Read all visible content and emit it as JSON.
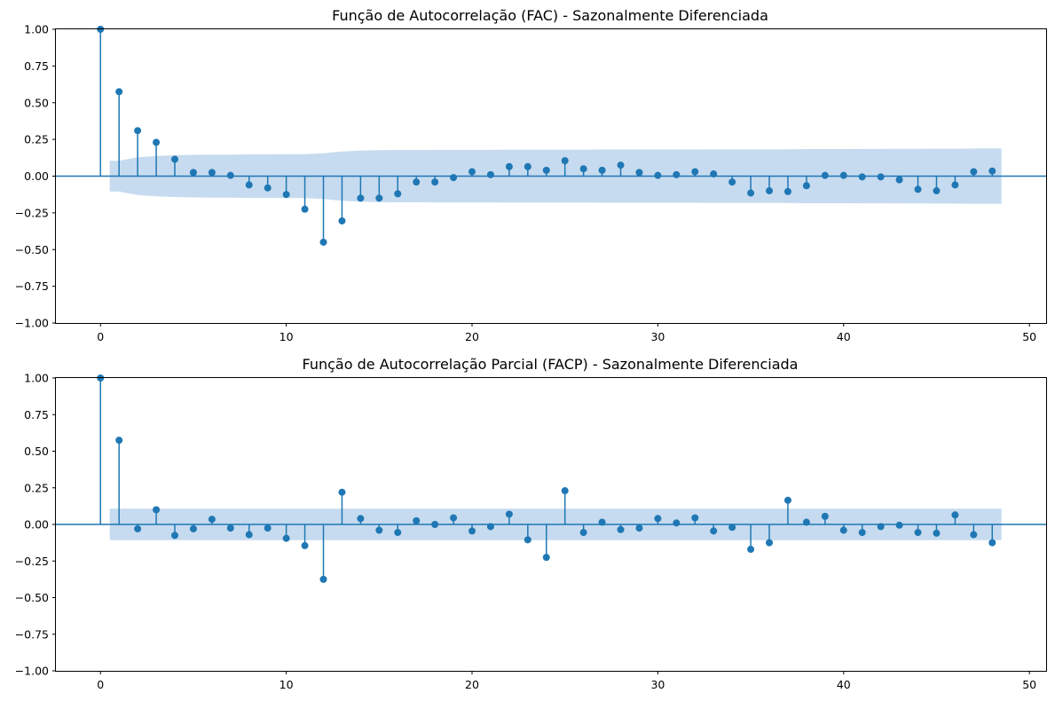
{
  "colors": {
    "series": "#1f77b4",
    "band": "#c6dbef"
  },
  "chart_data": [
    {
      "type": "stem",
      "title": "Função de Autocorrelação (FAC) - Sazonalmente Diferenciada",
      "xlabel": "",
      "ylabel": "",
      "xlim": [
        -2.4,
        50.9
      ],
      "ylim": [
        -1.0,
        1.0
      ],
      "xticks": [
        0,
        10,
        20,
        30,
        40,
        50
      ],
      "xtick_labels": [
        "0",
        "10",
        "20",
        "30",
        "40",
        "50"
      ],
      "yticks": [
        -1.0,
        -0.75,
        -0.5,
        -0.25,
        0.0,
        0.25,
        0.5,
        0.75,
        1.0
      ],
      "ytick_labels": [
        "−1.00",
        "−0.75",
        "−0.50",
        "−0.25",
        "0.00",
        "0.25",
        "0.50",
        "0.75",
        "1.00"
      ],
      "grid": false,
      "lags": [
        0,
        1,
        2,
        3,
        4,
        5,
        6,
        7,
        8,
        9,
        10,
        11,
        12,
        13,
        14,
        15,
        16,
        17,
        18,
        19,
        20,
        21,
        22,
        23,
        24,
        25,
        26,
        27,
        28,
        29,
        30,
        31,
        32,
        33,
        34,
        35,
        36,
        37,
        38,
        39,
        40,
        41,
        42,
        43,
        44,
        45,
        46,
        47,
        48
      ],
      "values": [
        1.0,
        0.575,
        0.31,
        0.23,
        0.115,
        0.025,
        0.025,
        0.005,
        -0.06,
        -0.08,
        -0.125,
        -0.225,
        -0.45,
        -0.305,
        -0.15,
        -0.15,
        -0.12,
        -0.04,
        -0.04,
        -0.01,
        0.03,
        0.01,
        0.065,
        0.065,
        0.04,
        0.105,
        0.05,
        0.04,
        0.075,
        0.025,
        0.005,
        0.01,
        0.03,
        0.015,
        -0.04,
        -0.115,
        -0.1,
        -0.105,
        -0.065,
        0.005,
        0.005,
        -0.005,
        -0.005,
        -0.025,
        -0.09,
        -0.1,
        -0.06,
        0.03,
        0.035
      ],
      "confidence_band": {
        "lags": [
          0.5,
          1,
          2,
          3,
          4,
          5,
          6,
          7,
          8,
          9,
          10,
          11,
          12,
          13,
          14,
          15,
          16,
          17,
          18,
          19,
          20,
          21,
          22,
          23,
          24,
          25,
          26,
          27,
          28,
          29,
          30,
          31,
          32,
          33,
          34,
          35,
          36,
          37,
          38,
          39,
          40,
          41,
          42,
          43,
          44,
          45,
          46,
          47,
          48,
          48.5
        ],
        "upper": [
          0.105,
          0.105,
          0.128,
          0.138,
          0.142,
          0.145,
          0.146,
          0.147,
          0.148,
          0.148,
          0.149,
          0.15,
          0.155,
          0.168,
          0.174,
          0.177,
          0.178,
          0.178,
          0.179,
          0.179,
          0.179,
          0.179,
          0.18,
          0.18,
          0.18,
          0.18,
          0.18,
          0.181,
          0.181,
          0.181,
          0.181,
          0.181,
          0.181,
          0.182,
          0.182,
          0.182,
          0.182,
          0.183,
          0.184,
          0.184,
          0.184,
          0.185,
          0.185,
          0.186,
          0.186,
          0.187,
          0.187,
          0.188,
          0.188,
          0.188
        ]
      }
    },
    {
      "type": "stem",
      "title": "Função de Autocorrelação Parcial (FACP) - Sazonalmente Diferenciada",
      "xlabel": "",
      "ylabel": "",
      "xlim": [
        -2.4,
        50.9
      ],
      "ylim": [
        -1.0,
        1.0
      ],
      "xticks": [
        0,
        10,
        20,
        30,
        40,
        50
      ],
      "xtick_labels": [
        "0",
        "10",
        "20",
        "30",
        "40",
        "50"
      ],
      "yticks": [
        -1.0,
        -0.75,
        -0.5,
        -0.25,
        0.0,
        0.25,
        0.5,
        0.75,
        1.0
      ],
      "ytick_labels": [
        "−1.00",
        "−0.75",
        "−0.50",
        "−0.25",
        "0.00",
        "0.25",
        "0.50",
        "0.75",
        "1.00"
      ],
      "grid": false,
      "lags": [
        0,
        1,
        2,
        3,
        4,
        5,
        6,
        7,
        8,
        9,
        10,
        11,
        12,
        13,
        14,
        15,
        16,
        17,
        18,
        19,
        20,
        21,
        22,
        23,
        24,
        25,
        26,
        27,
        28,
        29,
        30,
        31,
        32,
        33,
        34,
        35,
        36,
        37,
        38,
        39,
        40,
        41,
        42,
        43,
        44,
        45,
        46,
        47,
        48
      ],
      "values": [
        1.0,
        0.575,
        -0.03,
        0.1,
        -0.075,
        -0.03,
        0.035,
        -0.025,
        -0.07,
        -0.025,
        -0.095,
        -0.145,
        -0.375,
        0.22,
        0.04,
        -0.04,
        -0.055,
        0.025,
        0.0,
        0.045,
        -0.045,
        -0.015,
        0.07,
        -0.105,
        -0.225,
        0.23,
        -0.055,
        0.015,
        -0.035,
        -0.025,
        0.04,
        0.01,
        0.045,
        -0.045,
        -0.02,
        -0.17,
        -0.125,
        0.165,
        0.015,
        0.055,
        -0.04,
        -0.055,
        -0.015,
        -0.005,
        -0.055,
        -0.06,
        0.065,
        -0.07,
        -0.125
      ],
      "confidence_band": {
        "lags": [
          0.5,
          48.5
        ],
        "upper": [
          0.108,
          0.108
        ]
      }
    }
  ]
}
